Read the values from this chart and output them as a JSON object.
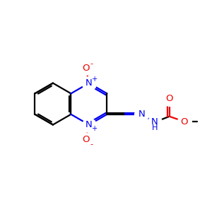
{
  "bg_color": "#ffffff",
  "bond_color": "#000000",
  "N_color": "#0000ee",
  "O_color": "#ee0000",
  "lw": 1.6,
  "fs": 9.5,
  "figsize": [
    3.0,
    3.0
  ],
  "dpi": 100,
  "xlim": [
    0,
    10
  ],
  "ylim": [
    0,
    10
  ]
}
